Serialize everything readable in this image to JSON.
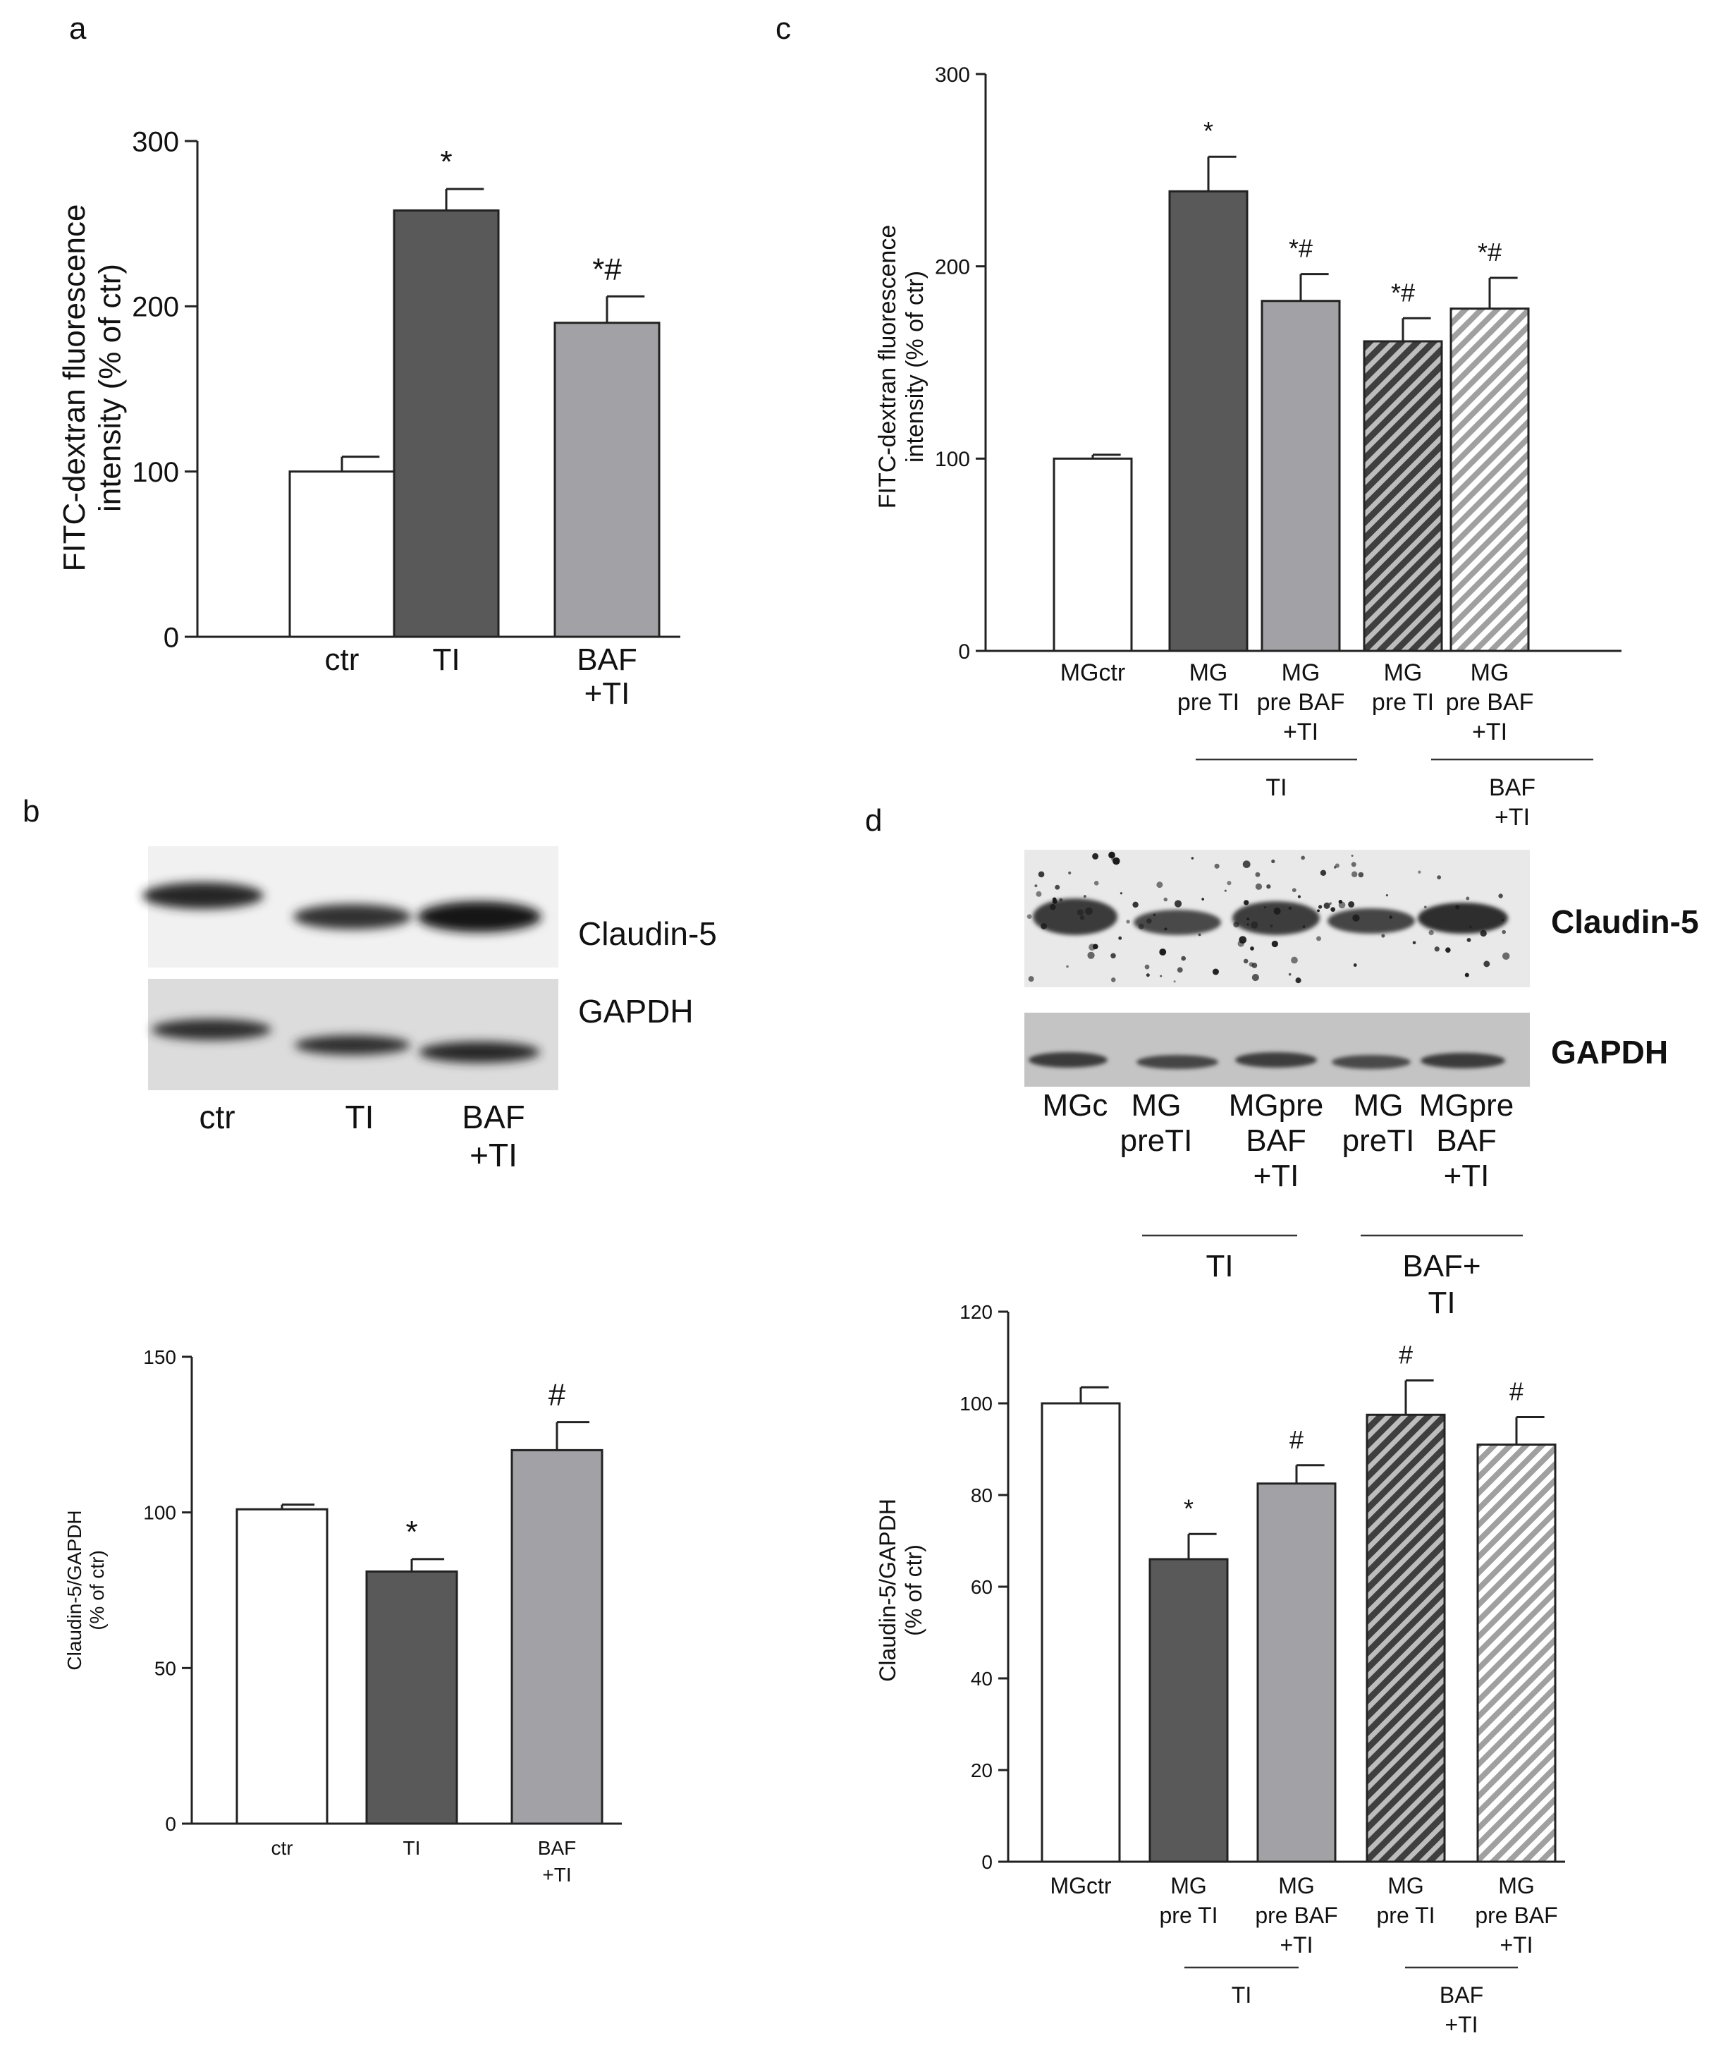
{
  "panels": {
    "a": {
      "letter": "a"
    },
    "b": {
      "letter": "b",
      "blot_labels": [
        "Claudin-5",
        "GAPDH"
      ],
      "lanes": [
        "ctr",
        "TI",
        "BAF\n+TI"
      ]
    },
    "c": {
      "letter": "c"
    },
    "d": {
      "letter": "d",
      "blot_labels": [
        "Claudin-5",
        "GAPDH"
      ],
      "lanes": [
        "MGc",
        "MG\npreTI",
        "MGpre\nBAF\n+TI",
        "MG\npreTI",
        "MGpre\nBAF\n+TI"
      ],
      "groups": [
        "TI",
        "BAF+\nTI"
      ]
    }
  },
  "colors": {
    "white": "#ffffff",
    "dark": "#595959",
    "light": "#a2a2a6"
  },
  "chart_data": [
    {
      "id": "a",
      "type": "bar",
      "categories": [
        "ctr",
        "TI",
        "BAF\n+TI"
      ],
      "values": [
        100,
        258,
        190
      ],
      "errors": [
        9,
        13,
        16
      ],
      "sig": [
        "",
        "*",
        "*#"
      ],
      "fills": [
        "white",
        "dark",
        "light"
      ],
      "ylabel": "FITC-dextran fluorescence\nintensity  (% of ctr)",
      "ylim": [
        0,
        300
      ],
      "yticks": [
        0,
        100,
        200,
        300
      ]
    },
    {
      "id": "b",
      "type": "bar",
      "categories": [
        "ctr",
        "TI",
        "BAF\n+TI"
      ],
      "values": [
        101,
        81,
        120
      ],
      "errors": [
        1.5,
        4,
        9
      ],
      "sig": [
        "",
        "*",
        "#"
      ],
      "fills": [
        "white",
        "dark",
        "light"
      ],
      "ylabel": "Claudin-5/GAPDH\n(% of ctr)",
      "ylim": [
        0,
        150
      ],
      "yticks": [
        0,
        50,
        100,
        150
      ]
    },
    {
      "id": "c",
      "type": "bar",
      "categories": [
        "MGctr",
        "MG\npre TI",
        "MG\npre BAF\n+TI",
        "MG\npre TI",
        "MG\npre BAF\n+TI"
      ],
      "values": [
        100,
        239,
        182,
        161,
        178
      ],
      "errors": [
        2,
        18,
        14,
        12,
        16
      ],
      "sig": [
        "",
        "*",
        "*#",
        "*#",
        "*#"
      ],
      "fills": [
        "white",
        "dark",
        "light",
        "dark-hatch",
        "light-hatch"
      ],
      "groups": [
        {
          "label": "TI",
          "from": 1,
          "to": 2
        },
        {
          "label": "BAF\n+TI",
          "from": 3,
          "to": 4
        }
      ],
      "ylabel": "FITC-dextran fluorescence\nintensity  (% of ctr)",
      "ylim": [
        0,
        300
      ],
      "yticks": [
        0,
        100,
        200,
        300
      ]
    },
    {
      "id": "d",
      "type": "bar",
      "categories": [
        "MGctr",
        "MG\npre TI",
        "MG\npre BAF\n+TI",
        "MG\npre TI",
        "MG\npre BAF\n+TI"
      ],
      "values": [
        100,
        66,
        82.5,
        97.5,
        91
      ],
      "errors": [
        3.5,
        5.5,
        4,
        7.5,
        6
      ],
      "sig": [
        "",
        "*",
        "#",
        "#",
        "#"
      ],
      "fills": [
        "white",
        "dark",
        "light",
        "dark-hatch",
        "light-hatch"
      ],
      "groups": [
        {
          "label": "TI",
          "from": 1,
          "to": 2
        },
        {
          "label": "BAF\n+TI",
          "from": 3,
          "to": 4
        }
      ],
      "ylabel": "Claudin-5/GAPDH\n(% of ctr)",
      "ylim": [
        0,
        120
      ],
      "yticks": [
        0,
        20,
        40,
        60,
        80,
        100,
        120
      ]
    }
  ]
}
